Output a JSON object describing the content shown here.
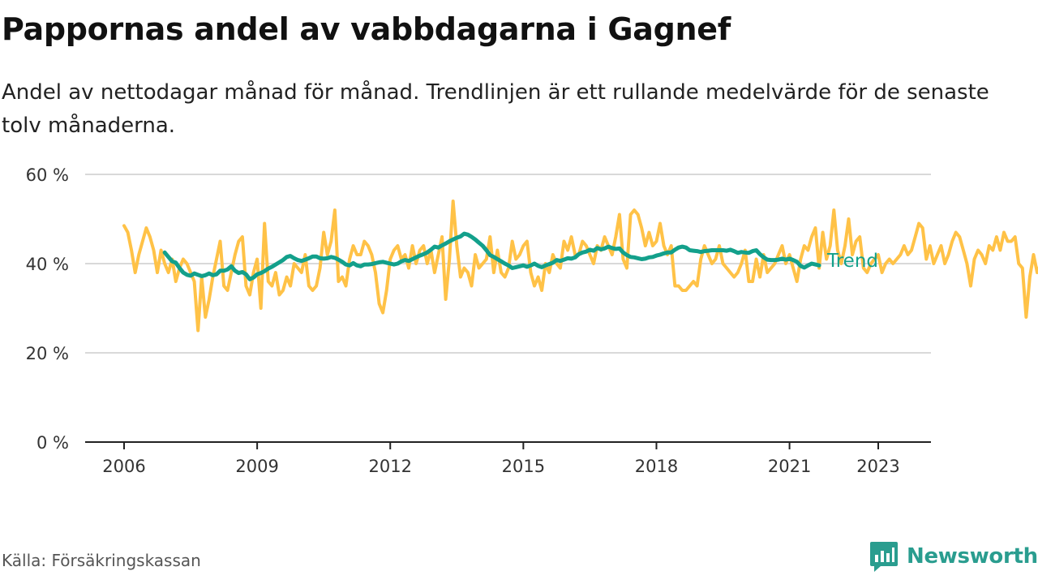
{
  "title": "Pappornas andel av vabbdagarna i Gagnef",
  "subtitle": "Andel av nettodagar månad för månad. Trendlinjen är ett rullande medelvärde för de senaste tolv månaderna.",
  "source": "Källa: Försäkringskassan",
  "brand": {
    "name": "Newsworthy",
    "color": "#2a9d8f"
  },
  "colors": {
    "monthly": "#ffc247",
    "trend": "#13a08b",
    "grid": "#d9d9d9",
    "axis": "#222222"
  },
  "chart_data": {
    "type": "line",
    "title": "Pappornas andel av vabbdagarna i Gagnef",
    "xlabel": "",
    "ylabel": "",
    "ylim": [
      0,
      60
    ],
    "yticks": [
      0,
      20,
      40,
      60
    ],
    "ytick_labels": [
      "0 %",
      "20 %",
      "40 %",
      "60 %"
    ],
    "xticks": [
      2006,
      2009,
      2012,
      2015,
      2018,
      2021,
      2023
    ],
    "xtick_labels": [
      "2006",
      "2009",
      "2012",
      "2015",
      "2018",
      "2021",
      "2023"
    ],
    "grid": true,
    "legend": "inline-right",
    "series": [
      {
        "name": "Per månad",
        "color": "#ffc247",
        "start": "2006-01",
        "values": [
          48.5,
          47,
          43,
          38,
          42,
          45,
          48,
          46,
          43,
          38,
          43,
          40,
          38,
          41,
          36,
          39,
          41,
          40,
          38,
          36,
          25,
          37,
          28,
          32,
          37,
          41,
          45,
          35,
          34,
          38,
          42,
          45,
          46,
          35,
          33,
          38,
          41,
          30,
          49,
          36,
          35,
          38,
          33,
          34,
          37,
          35,
          40,
          39,
          38,
          42,
          35,
          34,
          35,
          39,
          47,
          42,
          45,
          52,
          36,
          37,
          35,
          41,
          44,
          42,
          42,
          45,
          44,
          42,
          38,
          31,
          29,
          34,
          41,
          43,
          44,
          41,
          42,
          39,
          44,
          40,
          43,
          44,
          40,
          43,
          38,
          42,
          46,
          32,
          41,
          54,
          44,
          37,
          39,
          38,
          35,
          42,
          39,
          40,
          41,
          46,
          38,
          43,
          38,
          37,
          39,
          45,
          41,
          42,
          44,
          45,
          38,
          35,
          37,
          34,
          40,
          38,
          42,
          40,
          39,
          45,
          43,
          46,
          42,
          42,
          45,
          44,
          42,
          40,
          44,
          43,
          46,
          44,
          42,
          46,
          51,
          41,
          39,
          51,
          52,
          51,
          48,
          44,
          47,
          44,
          45,
          49,
          44,
          42,
          44,
          35,
          35,
          34,
          34,
          35,
          36,
          35,
          41,
          44,
          42,
          40,
          41,
          44,
          40,
          39,
          38,
          37,
          38,
          40,
          43,
          36,
          36,
          41,
          37,
          42,
          38,
          39,
          40,
          42,
          44,
          40,
          42,
          39,
          36,
          41,
          44,
          43,
          46,
          48,
          39,
          47,
          41,
          44,
          52,
          43,
          40,
          44,
          50,
          42,
          45,
          46,
          39,
          38,
          40,
          41,
          42,
          38,
          40,
          41,
          40,
          41,
          42,
          44,
          42,
          43,
          46,
          49,
          48,
          41,
          44,
          40,
          42,
          44,
          40,
          42,
          45,
          47,
          46,
          43,
          40,
          35,
          41,
          43,
          42,
          40,
          44,
          43,
          46,
          43,
          47,
          45,
          45,
          46,
          40,
          39,
          28,
          37,
          42,
          38,
          40,
          42,
          44,
          46,
          45,
          36,
          38,
          39,
          41,
          42,
          43,
          37,
          38,
          39,
          40,
          42,
          41,
          40,
          43,
          38,
          40,
          42,
          41,
          40,
          36,
          35.5
        ]
      },
      {
        "name": "Trend",
        "color": "#13a08b",
        "start": "2006-12",
        "values": [
          42.5,
          41.5,
          40.5,
          40.2,
          39,
          38,
          37.5,
          37.3,
          37.8,
          37.5,
          37.2,
          37.4,
          37.8,
          37.4,
          37.6,
          38.4,
          38.4,
          38.7,
          39.4,
          38.4,
          37.9,
          38.1,
          37.6,
          36.5,
          36.9,
          37.6,
          37.9,
          38.3,
          38.9,
          39.3,
          39.8,
          40.3,
          40.8,
          41.5,
          41.7,
          41.2,
          40.8,
          40.6,
          40.9,
          41.2,
          41.6,
          41.6,
          41.2,
          41.1,
          41.2,
          41.5,
          41.3,
          40.9,
          40.4,
          39.8,
          39.6,
          40.1,
          39.6,
          39.4,
          39.8,
          39.8,
          39.9,
          40.1,
          40.3,
          40.4,
          40.2,
          40,
          39.8,
          40,
          40.5,
          40.8,
          40.6,
          41,
          41.4,
          41.8,
          42.1,
          42.5,
          43.1,
          43.8,
          43.6,
          44.1,
          44.5,
          45,
          45.4,
          45.8,
          46.1,
          46.7,
          46.5,
          46,
          45.4,
          44.7,
          44,
          43,
          41.9,
          41.5,
          41,
          40.5,
          40,
          39.6,
          39,
          39.2,
          39.4,
          39.6,
          39.3,
          39.6,
          40,
          39.5,
          39.2,
          39.6,
          39.9,
          40.2,
          40.8,
          40.6,
          40.9,
          41.2,
          41.1,
          41.4,
          42.1,
          42.5,
          42.7,
          43.1,
          42.9,
          43.5,
          43.2,
          43.4,
          43.8,
          43.5,
          43.3,
          43.4,
          42.5,
          41.9,
          41.5,
          41.4,
          41.2,
          41,
          41.1,
          41.4,
          41.5,
          41.8,
          42,
          42.3,
          42.5,
          42.5,
          43.1,
          43.6,
          43.8,
          43.6,
          43,
          42.9,
          42.8,
          42.6,
          42.8,
          42.9,
          43,
          43,
          43,
          43,
          42.9,
          43.1,
          42.8,
          42.4,
          42.6,
          42.5,
          42.4,
          42.8,
          43,
          42.1,
          41.4,
          40.9,
          40.8,
          40.8,
          40.9,
          41.1,
          40.9,
          41.1,
          40.8,
          40.4,
          39.5,
          39.1,
          39.6,
          40,
          39.8,
          39.6
        ]
      }
    ]
  }
}
